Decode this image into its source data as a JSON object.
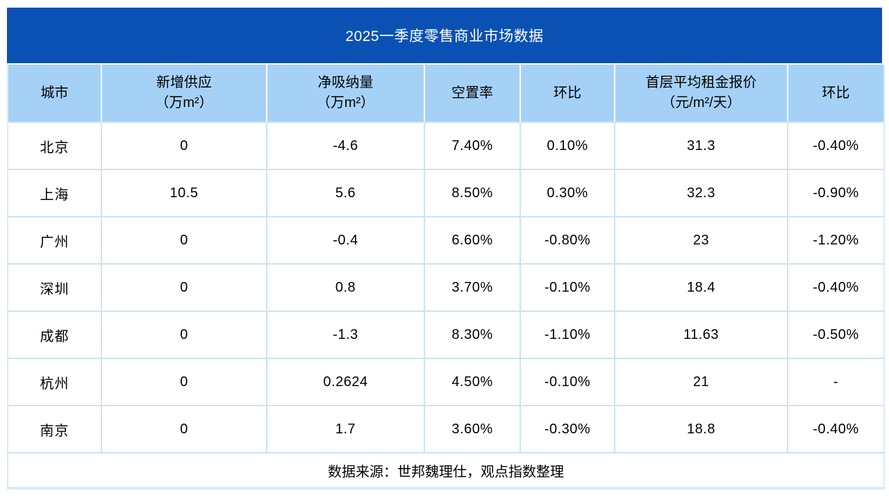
{
  "colors": {
    "title_bar_bg": "#0b51b4",
    "title_text": "#ffffff",
    "header_bg": "#a6d1f7",
    "grid_line": "#cde2f6",
    "body_text": "#000000"
  },
  "table": {
    "title": "2025一季度零售商业市场数据",
    "columns": [
      {
        "label": "城市"
      },
      {
        "label": "新增供应\n（万m²）"
      },
      {
        "label": "净吸纳量\n（万m²）"
      },
      {
        "label": "空置率"
      },
      {
        "label": "环比"
      },
      {
        "label": "首层平均租金报价\n（元/m²/天）"
      },
      {
        "label": "环比"
      }
    ],
    "rows": [
      {
        "city": "北京",
        "values": [
          "0",
          "-4.6",
          "7.40%",
          "0.10%",
          "31.3",
          "-0.40%"
        ]
      },
      {
        "city": "上海",
        "values": [
          "10.5",
          "5.6",
          "8.50%",
          "0.30%",
          "32.3",
          "-0.90%"
        ]
      },
      {
        "city": "广州",
        "values": [
          "0",
          "-0.4",
          "6.60%",
          "-0.80%",
          "23",
          "-1.20%"
        ]
      },
      {
        "city": "深圳",
        "values": [
          "0",
          "0.8",
          "3.70%",
          "-0.10%",
          "18.4",
          "-0.40%"
        ]
      },
      {
        "city": "成都",
        "values": [
          "0",
          "-1.3",
          "8.30%",
          "-1.10%",
          "11.63",
          "-0.50%"
        ]
      },
      {
        "city": "杭州",
        "values": [
          "0",
          "0.2624",
          "4.50%",
          "-0.10%",
          "21",
          "-"
        ]
      },
      {
        "city": "南京",
        "values": [
          "0",
          "1.7",
          "3.60%",
          "-0.30%",
          "18.8",
          "-0.40%"
        ]
      }
    ],
    "source_note": "数据来源：世邦魏理仕，观点指数整理"
  },
  "chart_data": {
    "type": "table",
    "title": "2025一季度零售商业市场数据",
    "columns": [
      "城市",
      "新增供应（万m²）",
      "净吸纳量（万m²）",
      "空置率",
      "环比",
      "首层平均租金报价（元/m²/天）",
      "环比"
    ],
    "rows": [
      [
        "北京",
        "0",
        "-4.6",
        "7.40%",
        "0.10%",
        "31.3",
        "-0.40%"
      ],
      [
        "上海",
        "10.5",
        "5.6",
        "8.50%",
        "0.30%",
        "32.3",
        "-0.90%"
      ],
      [
        "广州",
        "0",
        "-0.4",
        "6.60%",
        "-0.80%",
        "23",
        "-1.20%"
      ],
      [
        "深圳",
        "0",
        "0.8",
        "3.70%",
        "-0.10%",
        "18.4",
        "-0.40%"
      ],
      [
        "成都",
        "0",
        "-1.3",
        "8.30%",
        "-1.10%",
        "11.63",
        "-0.50%"
      ],
      [
        "杭州",
        "0",
        "0.2624",
        "4.50%",
        "-0.10%",
        "21",
        "-"
      ],
      [
        "南京",
        "0",
        "1.7",
        "3.60%",
        "-0.30%",
        "18.8",
        "-0.40%"
      ]
    ],
    "source": "数据来源：世邦魏理仕，观点指数整理"
  }
}
